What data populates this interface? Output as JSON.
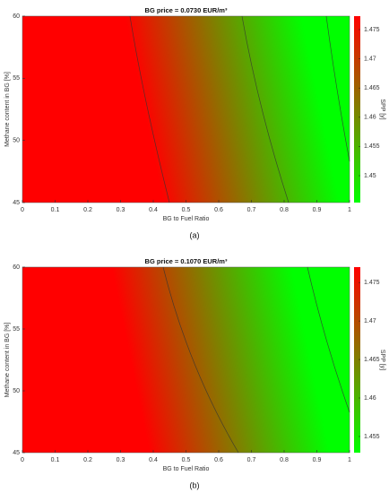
{
  "chart_data": [
    {
      "type": "heatmap",
      "title": "BG price = 0.0730 EUR/m³",
      "xlabel": "BG to Fuel Ratio",
      "ylabel": "Methane content in BG [%]",
      "colorbar_label": "SPP [y]",
      "panel_label": "(a)",
      "xlim": [
        0,
        1
      ],
      "xticks": [
        0,
        0.1,
        0.2,
        0.3,
        0.4,
        0.5,
        0.6,
        0.7,
        0.8,
        0.9,
        1
      ],
      "ylim": [
        45,
        60
      ],
      "yticks": [
        45,
        50,
        55,
        60
      ],
      "zlim": [
        1.4454,
        1.4773
      ],
      "zticks": [
        1.45,
        1.455,
        1.46,
        1.465,
        1.47,
        1.475
      ],
      "colormap": [
        "#ff0000",
        "#00ff00"
      ]
    },
    {
      "type": "heatmap",
      "title": "BG price = 0.1070 EUR/m³",
      "xlabel": "BG to Fuel Ratio",
      "ylabel": "Methane content in BG [%]",
      "colorbar_label": "SPP [y]",
      "panel_label": "(b)",
      "xlim": [
        0,
        1
      ],
      "xticks": [
        0,
        0.1,
        0.2,
        0.3,
        0.4,
        0.5,
        0.6,
        0.7,
        0.8,
        0.9,
        1
      ],
      "ylim": [
        45,
        60
      ],
      "yticks": [
        45,
        50,
        55,
        60
      ],
      "zlim": [
        1.4529,
        1.477
      ],
      "zticks": [
        1.455,
        1.46,
        1.465,
        1.47,
        1.475
      ],
      "colormap": [
        "#ff0000",
        "#00ff00"
      ]
    }
  ]
}
